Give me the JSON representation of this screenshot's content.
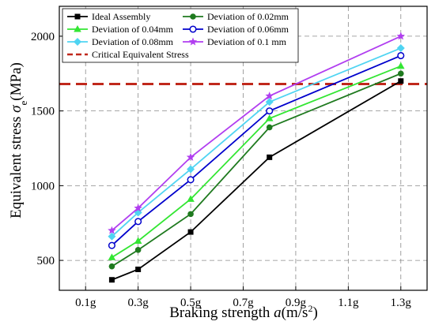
{
  "chart_data": {
    "type": "line",
    "xlabel": {
      "prefix": "Braking strength ",
      "var": "a",
      "unit_open": "(m/s",
      "sup": "2",
      "unit_close": ")"
    },
    "ylabel": {
      "prefix": "Equivalent stress ",
      "var": "σ",
      "sub": "e",
      "unit": "(MPa)"
    },
    "xlim": [
      0,
      1.4
    ],
    "ylim": [
      300,
      2200
    ],
    "x_ticks": [
      {
        "value": 0.1,
        "label": "0.1g"
      },
      {
        "value": 0.3,
        "label": "0.3g"
      },
      {
        "value": 0.5,
        "label": "0.5g"
      },
      {
        "value": 0.7,
        "label": "0.7g"
      },
      {
        "value": 0.9,
        "label": "0.9g"
      },
      {
        "value": 1.1,
        "label": "1.1g"
      },
      {
        "value": 1.3,
        "label": "1.3g"
      }
    ],
    "y_ticks": [
      {
        "value": 500,
        "label": "500"
      },
      {
        "value": 1000,
        "label": "1000"
      },
      {
        "value": 1500,
        "label": "1500"
      },
      {
        "value": 2000,
        "label": "2000"
      }
    ],
    "grid": true,
    "x": [
      0.2,
      0.3,
      0.5,
      0.8,
      1.3
    ],
    "series": [
      {
        "name": "Ideal Assembly",
        "color": "#000000",
        "marker": "square",
        "values": [
          370,
          440,
          690,
          1190,
          1700
        ]
      },
      {
        "name": "Deviation of 0.02mm",
        "color": "#1f7a1f",
        "marker": "circle",
        "values": [
          460,
          570,
          810,
          1390,
          1750
        ]
      },
      {
        "name": "Deviation of 0.04mm",
        "color": "#33e633",
        "marker": "triangle",
        "values": [
          520,
          630,
          910,
          1450,
          1800
        ]
      },
      {
        "name": "Deviation of 0.06mm",
        "color": "#0000cc",
        "marker": "open-circle",
        "values": [
          600,
          760,
          1040,
          1500,
          1870
        ]
      },
      {
        "name": "Deviation of 0.08mm",
        "color": "#4fd4f2",
        "marker": "diamond",
        "values": [
          660,
          820,
          1110,
          1560,
          1920
        ]
      },
      {
        "name": "Deviation of 0.1 mm",
        "color": "#b13ef0",
        "marker": "star",
        "values": [
          700,
          850,
          1190,
          1600,
          2000
        ]
      }
    ],
    "reference_line": {
      "name": "Critical Equivalent Stress",
      "color": "#c0281c",
      "value": 1680,
      "style": "dashed"
    },
    "legend": {
      "placement": "top-left",
      "columns": 2
    }
  }
}
